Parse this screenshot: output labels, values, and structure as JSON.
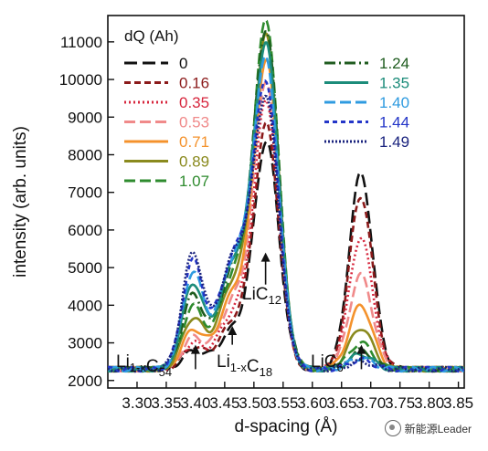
{
  "chart_data": {
    "type": "line",
    "xlabel": "d-spacing (Å)",
    "ylabel": "intensity (arb. units)",
    "xlim": [
      3.25,
      3.86
    ],
    "ylim": [
      1800,
      11700
    ],
    "xticks": [
      "3.30",
      "3.35",
      "3.40",
      "3.45",
      "3.50",
      "3.55",
      "3.60",
      "3.65",
      "3.70",
      "3.75",
      "3.80",
      "3.85"
    ],
    "yticks": [
      "2000",
      "3000",
      "4000",
      "5000",
      "6000",
      "7000",
      "8000",
      "9000",
      "10000",
      "11000"
    ],
    "legend_title": "dQ (Ah)",
    "grid": false,
    "annotations": [
      {
        "base": "Li",
        "sub": "1-x",
        "rest": "C",
        "sub2": "54",
        "x": 3.4,
        "arrow_y": [
          2300,
          2950
        ]
      },
      {
        "base": "Li",
        "sub": "1-x",
        "rest": "C",
        "sub2": "18",
        "x": 3.463,
        "arrow_y": [
          2950,
          3450
        ]
      },
      {
        "base": "LiC",
        "sub": "12",
        "rest": "",
        "sub2": "",
        "x": 3.52,
        "arrow_y": [
          4550,
          5400
        ]
      },
      {
        "base": "LiC",
        "sub": "6",
        "rest": "",
        "sub2": "",
        "x": 3.684,
        "arrow_y": [
          2300,
          2950
        ]
      }
    ],
    "series": [
      {
        "name": "0",
        "color": "#111111",
        "dash": "14,6",
        "params": {
          "p12": 5900,
          "c12": 3.522,
          "w12": 0.021,
          "p18": 1050,
          "p54": 450,
          "p6": 5200,
          "c6": 3.683
        }
      },
      {
        "name": "0.16",
        "color": "#8b1a1a",
        "dash": "7,4",
        "params": {
          "p12": 6300,
          "p18": 1250,
          "p54": 550,
          "p6": 4600
        }
      },
      {
        "name": "0.35",
        "color": "#d7263d",
        "dash": "2,3",
        "params": {
          "p12": 6900,
          "p18": 1500,
          "p54": 650,
          "p6": 3500
        }
      },
      {
        "name": "0.53",
        "color": "#f08a8a",
        "dash": "12,5",
        "params": {
          "p12": 7400,
          "p18": 1800,
          "p54": 800,
          "p6": 2500
        }
      },
      {
        "name": "0.71",
        "color": "#f4922c",
        "dash": "",
        "params": {
          "p12": 7900,
          "p18": 2000,
          "p54": 1000,
          "p6": 1700
        }
      },
      {
        "name": "0.89",
        "color": "#8a8a1e",
        "dash": "",
        "params": {
          "p12": 8500,
          "p18": 2300,
          "p54": 1300,
          "p6": 1100
        }
      },
      {
        "name": "1.07",
        "color": "#2e8b2e",
        "dash": "12,5",
        "params": {
          "p12": 8900,
          "p18": 2500,
          "p54": 1600,
          "p6": 700
        }
      },
      {
        "name": "1.24",
        "color": "#1f5c1f",
        "dash": "12,4,2,4",
        "params": {
          "p12": 8600,
          "p18": 2700,
          "p54": 1900,
          "p6": 500
        }
      },
      {
        "name": "1.35",
        "color": "#1c8c7a",
        "dash": "",
        "params": {
          "p12": 8200,
          "p18": 2800,
          "p54": 2200,
          "p6": 400
        }
      },
      {
        "name": "1.40",
        "color": "#2f9be0",
        "dash": "12,5",
        "params": {
          "p12": 7800,
          "p18": 2900,
          "p54": 2500,
          "p6": 300
        }
      },
      {
        "name": "1.44",
        "color": "#2436c8",
        "dash": "5,4",
        "params": {
          "p12": 7200,
          "p18": 3000,
          "p54": 2800,
          "p6": 250
        }
      },
      {
        "name": "1.49",
        "color": "#1a237e",
        "dash": "2,2",
        "params": {
          "p12": 6800,
          "p18": 3000,
          "p54": 3000,
          "p6": 200
        }
      }
    ]
  },
  "watermark": "新能源Leader"
}
